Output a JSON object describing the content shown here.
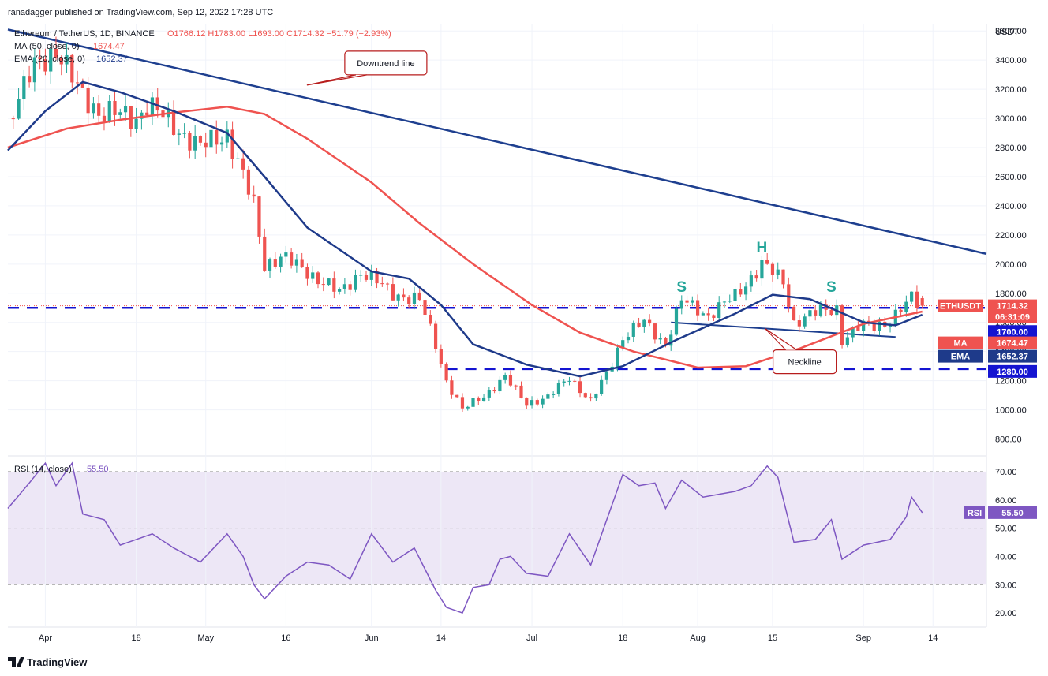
{
  "header": {
    "published_by": "ranadagger published on TradingView.com, Sep 12, 2022 17:28 UTC",
    "instrument": "Ethereum / TetherUS, 1D, BINANCE",
    "ohlc": "O1766.12 H1783.00 L1693.00 C1714.32 −51.79 (−2.93%)",
    "ma_legend": "MA (50, close, 0)",
    "ma_value": "1674.47",
    "ema_legend": "EMA (20, close, 0)",
    "ema_value": "1652.37",
    "rsi_legend": "RSI (14, close)",
    "rsi_value": "55.50"
  },
  "footer": {
    "brand": "TradingView"
  },
  "colors": {
    "up": "#26a69a",
    "down": "#ef5350",
    "ma": "#ef5350",
    "ema": "#1e3a8a",
    "trend": "#1e3f8f",
    "rsi": "#7e57c2",
    "rsi_band": "#ede7f6",
    "level": "#1414d1",
    "annotation": "#b71c1c"
  },
  "chart_data": [
    {
      "type": "candlestick",
      "title": "Ethereum / TetherUS, 1D, BINANCE",
      "unit": "USDT",
      "ylim": [
        700,
        3650
      ],
      "y_ticks": [
        800,
        1000,
        1200,
        1400,
        1600,
        1800,
        2000,
        2200,
        2400,
        2600,
        2800,
        3000,
        3200,
        3400,
        3600
      ],
      "y_tick_labels": [
        "800.00",
        "1000.00",
        "1200.00",
        "1400.00",
        "1600.00",
        "1800.00",
        "2000.00",
        "2200.00",
        "2400.00",
        "2600.00",
        "2800.00",
        "3000.00",
        "3200.00",
        "3400.00",
        "3600.00"
      ],
      "x_range": [
        "2022-03-25",
        "2022-09-24"
      ],
      "x_ticks": [
        "2022-04-01",
        "2022-04-18",
        "2022-05-01",
        "2022-05-16",
        "2022-06-01",
        "2022-06-14",
        "2022-07-01",
        "2022-07-18",
        "2022-08-01",
        "2022-08-15",
        "2022-09-01",
        "2022-09-14"
      ],
      "x_tick_labels": [
        "Apr",
        "18",
        "May",
        "16",
        "Jun",
        "14",
        "Jul",
        "18",
        "Aug",
        "15",
        "Sep",
        "14"
      ],
      "price_path": [
        [
          "2022-03-25",
          3000
        ],
        [
          "2022-03-30",
          3350
        ],
        [
          "2022-04-03",
          3480
        ],
        [
          "2022-04-07",
          3200
        ],
        [
          "2022-04-11",
          3050
        ],
        [
          "2022-04-18",
          3000
        ],
        [
          "2022-04-20",
          3100
        ],
        [
          "2022-04-25",
          2950
        ],
        [
          "2022-04-30",
          2800
        ],
        [
          "2022-05-05",
          2900
        ],
        [
          "2022-05-07",
          2700
        ],
        [
          "2022-05-10",
          2400
        ],
        [
          "2022-05-12",
          2000
        ],
        [
          "2022-05-15",
          2050
        ],
        [
          "2022-05-20",
          1950
        ],
        [
          "2022-05-26",
          1800
        ],
        [
          "2022-05-30",
          1950
        ],
        [
          "2022-06-05",
          1800
        ],
        [
          "2022-06-10",
          1750
        ],
        [
          "2022-06-13",
          1450
        ],
        [
          "2022-06-15",
          1200
        ],
        [
          "2022-06-18",
          1000
        ],
        [
          "2022-06-22",
          1100
        ],
        [
          "2022-06-26",
          1220
        ],
        [
          "2022-06-30",
          1050
        ],
        [
          "2022-07-04",
          1080
        ],
        [
          "2022-07-08",
          1230
        ],
        [
          "2022-07-12",
          1050
        ],
        [
          "2022-07-15",
          1250
        ],
        [
          "2022-07-18",
          1500
        ],
        [
          "2022-07-22",
          1600
        ],
        [
          "2022-07-26",
          1450
        ],
        [
          "2022-07-29",
          1750
        ],
        [
          "2022-08-03",
          1650
        ],
        [
          "2022-08-08",
          1780
        ],
        [
          "2022-08-13",
          2000
        ],
        [
          "2022-08-17",
          1880
        ],
        [
          "2022-08-19",
          1600
        ],
        [
          "2022-08-24",
          1680
        ],
        [
          "2022-08-27",
          1700
        ],
        [
          "2022-08-28",
          1480
        ],
        [
          "2022-09-01",
          1580
        ],
        [
          "2022-09-06",
          1600
        ],
        [
          "2022-09-09",
          1720
        ],
        [
          "2022-09-10",
          1780
        ],
        [
          "2022-09-12",
          1714.32
        ]
      ],
      "last": {
        "open": 1766.12,
        "high": 1783.0,
        "low": 1693.0,
        "close": 1714.32,
        "change": -51.79,
        "change_pct": -2.93
      },
      "series": [
        {
          "name": "MA (50, close, 0)",
          "last": 1674.47,
          "values": [
            [
              "2022-03-25",
              2800
            ],
            [
              "2022-04-05",
              2930
            ],
            [
              "2022-04-15",
              2990
            ],
            [
              "2022-04-25",
              3040
            ],
            [
              "2022-05-05",
              3080
            ],
            [
              "2022-05-12",
              3030
            ],
            [
              "2022-05-20",
              2860
            ],
            [
              "2022-06-01",
              2560
            ],
            [
              "2022-06-10",
              2280
            ],
            [
              "2022-06-20",
              2000
            ],
            [
              "2022-07-01",
              1720
            ],
            [
              "2022-07-10",
              1530
            ],
            [
              "2022-07-20",
              1400
            ],
            [
              "2022-08-01",
              1290
            ],
            [
              "2022-08-10",
              1300
            ],
            [
              "2022-08-20",
              1420
            ],
            [
              "2022-09-01",
              1590
            ],
            [
              "2022-09-12",
              1674.47
            ]
          ]
        },
        {
          "name": "EMA (20, close, 0)",
          "last": 1652.37,
          "values": [
            [
              "2022-03-25",
              2780
            ],
            [
              "2022-04-01",
              3050
            ],
            [
              "2022-04-08",
              3250
            ],
            [
              "2022-04-15",
              3180
            ],
            [
              "2022-04-25",
              3050
            ],
            [
              "2022-05-05",
              2900
            ],
            [
              "2022-05-12",
              2600
            ],
            [
              "2022-05-20",
              2250
            ],
            [
              "2022-06-01",
              1950
            ],
            [
              "2022-06-08",
              1900
            ],
            [
              "2022-06-14",
              1720
            ],
            [
              "2022-06-20",
              1450
            ],
            [
              "2022-06-30",
              1310
            ],
            [
              "2022-07-10",
              1230
            ],
            [
              "2022-07-18",
              1300
            ],
            [
              "2022-07-28",
              1480
            ],
            [
              "2022-08-08",
              1660
            ],
            [
              "2022-08-15",
              1790
            ],
            [
              "2022-08-22",
              1760
            ],
            [
              "2022-09-01",
              1600
            ],
            [
              "2022-09-07",
              1580
            ],
            [
              "2022-09-12",
              1652.37
            ]
          ]
        }
      ],
      "horizontal_levels": [
        {
          "label": "1700.00",
          "value": 1700
        },
        {
          "label": "1280.00",
          "value": 1280
        }
      ],
      "trendlines": [
        {
          "name": "downtrend",
          "points": [
            [
              "2022-03-25",
              3610
            ],
            [
              "2022-09-24",
              2070
            ]
          ]
        },
        {
          "name": "neckline",
          "points": [
            [
              "2022-07-27",
              1600
            ],
            [
              "2022-09-07",
              1500
            ]
          ]
        }
      ],
      "annotations": [
        {
          "text": "Downtrend line",
          "at": [
            "2022-05-27",
            3380
          ]
        },
        {
          "text": "Neckline",
          "at": [
            "2022-08-21",
            1330
          ]
        },
        {
          "text": "S",
          "at": [
            "2022-07-29",
            1810
          ]
        },
        {
          "text": "H",
          "at": [
            "2022-08-13",
            2080
          ]
        },
        {
          "text": "S",
          "at": [
            "2022-08-26",
            1810
          ]
        }
      ],
      "price_tags": [
        {
          "label": "ETHUSDT",
          "value": "1714.32",
          "sub": "06:31:09"
        },
        {
          "label": "MA",
          "value": "1674.47"
        },
        {
          "label": "EMA",
          "value": "1652.37"
        }
      ]
    },
    {
      "type": "line",
      "title": "RSI (14, close)",
      "ylim": [
        15,
        75
      ],
      "y_ticks": [
        20,
        30,
        40,
        50,
        60,
        70
      ],
      "y_tick_labels": [
        "20.00",
        "30.00",
        "40.00",
        "50.00",
        "60.00",
        "70.00"
      ],
      "band": [
        30,
        70
      ],
      "mid": 50,
      "series": [
        {
          "name": "RSI",
          "last": 55.5,
          "values": [
            [
              "2022-03-25",
              57
            ],
            [
              "2022-03-29",
              66
            ],
            [
              "2022-04-01",
              73
            ],
            [
              "2022-04-03",
              65
            ],
            [
              "2022-04-06",
              73
            ],
            [
              "2022-04-08",
              55
            ],
            [
              "2022-04-12",
              53
            ],
            [
              "2022-04-15",
              44
            ],
            [
              "2022-04-18",
              46
            ],
            [
              "2022-04-21",
              48
            ],
            [
              "2022-04-25",
              43
            ],
            [
              "2022-04-30",
              38
            ],
            [
              "2022-05-05",
              48
            ],
            [
              "2022-05-08",
              40
            ],
            [
              "2022-05-10",
              30
            ],
            [
              "2022-05-12",
              25
            ],
            [
              "2022-05-16",
              33
            ],
            [
              "2022-05-20",
              38
            ],
            [
              "2022-05-24",
              37
            ],
            [
              "2022-05-28",
              32
            ],
            [
              "2022-06-01",
              48
            ],
            [
              "2022-06-05",
              38
            ],
            [
              "2022-06-09",
              43
            ],
            [
              "2022-06-13",
              28
            ],
            [
              "2022-06-15",
              22
            ],
            [
              "2022-06-18",
              20
            ],
            [
              "2022-06-20",
              29
            ],
            [
              "2022-06-23",
              30
            ],
            [
              "2022-06-25",
              39
            ],
            [
              "2022-06-27",
              40
            ],
            [
              "2022-06-30",
              34
            ],
            [
              "2022-07-04",
              33
            ],
            [
              "2022-07-08",
              48
            ],
            [
              "2022-07-12",
              37
            ],
            [
              "2022-07-15",
              53
            ],
            [
              "2022-07-18",
              69
            ],
            [
              "2022-07-21",
              65
            ],
            [
              "2022-07-24",
              66
            ],
            [
              "2022-07-26",
              57
            ],
            [
              "2022-07-29",
              67
            ],
            [
              "2022-08-02",
              61
            ],
            [
              "2022-08-08",
              63
            ],
            [
              "2022-08-11",
              65
            ],
            [
              "2022-08-14",
              72
            ],
            [
              "2022-08-16",
              68
            ],
            [
              "2022-08-19",
              45
            ],
            [
              "2022-08-23",
              46
            ],
            [
              "2022-08-26",
              53
            ],
            [
              "2022-08-28",
              39
            ],
            [
              "2022-09-01",
              44
            ],
            [
              "2022-09-06",
              46
            ],
            [
              "2022-09-09",
              54
            ],
            [
              "2022-09-10",
              61
            ],
            [
              "2022-09-12",
              55.5
            ]
          ]
        }
      ]
    }
  ]
}
